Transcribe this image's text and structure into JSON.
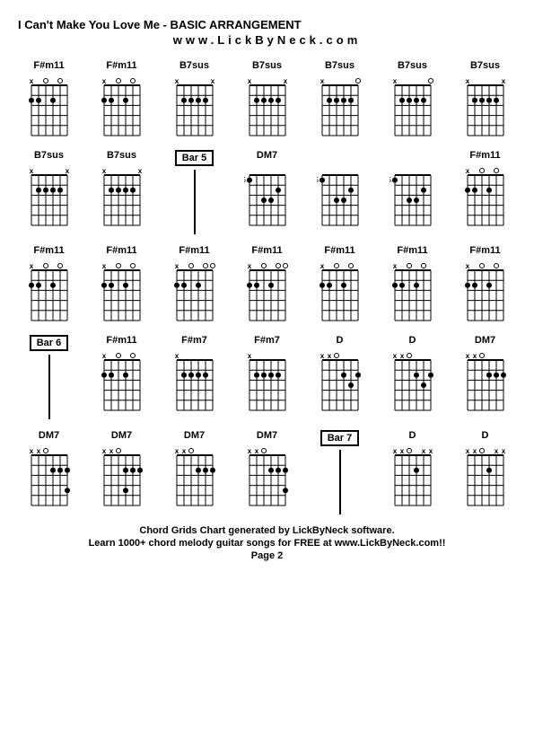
{
  "title": "I Can't Make You Love Me - BASIC ARRANGEMENT",
  "subtitle": "www.LickByNeck.com",
  "footer": {
    "line1": "Chord Grids Chart generated by LickByNeck software.",
    "line2": "Learn 1000+ chord melody guitar songs for FREE at www.LickByNeck.com!!",
    "line3": "Page 2"
  },
  "colors": {
    "grid": "#000000",
    "dot": "#000000",
    "background": "#ffffff"
  },
  "rows": [
    [
      {
        "type": "chord",
        "label": "F#m11",
        "markers": "x.o.o.",
        "dots": [
          [
            2,
            0
          ],
          [
            2,
            1
          ],
          [
            2,
            3
          ]
        ],
        "fret": ""
      },
      {
        "type": "chord",
        "label": "F#m11",
        "markers": "x.o.o.",
        "dots": [
          [
            2,
            0
          ],
          [
            2,
            1
          ],
          [
            2,
            3
          ]
        ],
        "fret": ""
      },
      {
        "type": "chord",
        "label": "B7sus",
        "markers": "x....x",
        "dots": [
          [
            2,
            1
          ],
          [
            2,
            2
          ],
          [
            2,
            3
          ],
          [
            2,
            4
          ]
        ],
        "fret": ""
      },
      {
        "type": "chord",
        "label": "B7sus",
        "markers": "x....x",
        "dots": [
          [
            2,
            1
          ],
          [
            2,
            2
          ],
          [
            2,
            3
          ],
          [
            2,
            4
          ]
        ],
        "fret": ""
      },
      {
        "type": "chord",
        "label": "B7sus",
        "markers": "x....o",
        "dots": [
          [
            2,
            1
          ],
          [
            2,
            2
          ],
          [
            2,
            3
          ],
          [
            2,
            4
          ]
        ],
        "fret": ""
      },
      {
        "type": "chord",
        "label": "B7sus",
        "markers": "x....o",
        "dots": [
          [
            2,
            1
          ],
          [
            2,
            2
          ],
          [
            2,
            3
          ],
          [
            2,
            4
          ]
        ],
        "fret": ""
      },
      {
        "type": "chord",
        "label": "B7sus",
        "markers": "x....x",
        "dots": [
          [
            2,
            1
          ],
          [
            2,
            2
          ],
          [
            2,
            3
          ],
          [
            2,
            4
          ]
        ],
        "fret": ""
      }
    ],
    [
      {
        "type": "chord",
        "label": "B7sus",
        "markers": "x....x",
        "dots": [
          [
            2,
            1
          ],
          [
            2,
            2
          ],
          [
            2,
            3
          ],
          [
            2,
            4
          ]
        ],
        "fret": ""
      },
      {
        "type": "chord",
        "label": "B7sus",
        "markers": "x....x",
        "dots": [
          [
            2,
            1
          ],
          [
            2,
            2
          ],
          [
            2,
            3
          ],
          [
            2,
            4
          ]
        ],
        "fret": ""
      },
      {
        "type": "bar",
        "label": "Bar 5"
      },
      {
        "type": "chord",
        "label": "DM7",
        "markers": "......",
        "dots": [
          [
            1,
            0
          ],
          [
            3,
            2
          ],
          [
            3,
            3
          ],
          [
            2,
            4
          ]
        ],
        "fret": "5"
      },
      {
        "type": "chord",
        "label": "",
        "markers": "......",
        "dots": [
          [
            1,
            0
          ],
          [
            3,
            2
          ],
          [
            3,
            3
          ],
          [
            2,
            4
          ]
        ],
        "fret": "5"
      },
      {
        "type": "chord",
        "label": "",
        "markers": "......",
        "dots": [
          [
            1,
            0
          ],
          [
            3,
            2
          ],
          [
            3,
            3
          ],
          [
            2,
            4
          ]
        ],
        "fret": "5"
      },
      {
        "type": "chord",
        "label": "F#m11",
        "markers": "x.o.o.",
        "dots": [
          [
            2,
            0
          ],
          [
            2,
            1
          ],
          [
            2,
            3
          ]
        ],
        "fret": ""
      }
    ],
    [
      {
        "type": "chord",
        "label": "F#m11",
        "markers": "x.o.o.",
        "dots": [
          [
            2,
            0
          ],
          [
            2,
            1
          ],
          [
            2,
            3
          ]
        ],
        "fret": ""
      },
      {
        "type": "chord",
        "label": "F#m11",
        "markers": "x.o.o.",
        "dots": [
          [
            2,
            0
          ],
          [
            2,
            1
          ],
          [
            2,
            3
          ]
        ],
        "fret": ""
      },
      {
        "type": "chord",
        "label": "F#m11",
        "markers": "x.o.oo",
        "dots": [
          [
            2,
            0
          ],
          [
            2,
            1
          ],
          [
            2,
            3
          ]
        ],
        "fret": ""
      },
      {
        "type": "chord",
        "label": "F#m11",
        "markers": "x.o.oo",
        "dots": [
          [
            2,
            0
          ],
          [
            2,
            1
          ],
          [
            2,
            3
          ]
        ],
        "fret": ""
      },
      {
        "type": "chord",
        "label": "F#m11",
        "markers": "x.o.o.",
        "dots": [
          [
            2,
            0
          ],
          [
            2,
            1
          ],
          [
            2,
            3
          ]
        ],
        "fret": ""
      },
      {
        "type": "chord",
        "label": "F#m11",
        "markers": "x.o.o.",
        "dots": [
          [
            2,
            0
          ],
          [
            2,
            1
          ],
          [
            2,
            3
          ]
        ],
        "fret": ""
      },
      {
        "type": "chord",
        "label": "F#m11",
        "markers": "x.o.o.",
        "dots": [
          [
            2,
            0
          ],
          [
            2,
            1
          ],
          [
            2,
            3
          ]
        ],
        "fret": ""
      }
    ],
    [
      {
        "type": "bar",
        "label": "Bar 6"
      },
      {
        "type": "chord",
        "label": "F#m11",
        "markers": "x.o.o.",
        "dots": [
          [
            2,
            0
          ],
          [
            2,
            1
          ],
          [
            2,
            3
          ]
        ],
        "fret": ""
      },
      {
        "type": "chord",
        "label": "F#m7",
        "markers": "x.....",
        "dots": [
          [
            2,
            1
          ],
          [
            2,
            2
          ],
          [
            2,
            3
          ],
          [
            2,
            4
          ]
        ],
        "fret": ""
      },
      {
        "type": "chord",
        "label": "F#m7",
        "markers": "x.....",
        "dots": [
          [
            2,
            1
          ],
          [
            2,
            2
          ],
          [
            2,
            3
          ],
          [
            2,
            4
          ]
        ],
        "fret": ""
      },
      {
        "type": "chord",
        "label": "D",
        "markers": "xxo...",
        "dots": [
          [
            2,
            3
          ],
          [
            3,
            4
          ],
          [
            2,
            5
          ]
        ],
        "fret": ""
      },
      {
        "type": "chord",
        "label": "D",
        "markers": "xxo...",
        "dots": [
          [
            2,
            3
          ],
          [
            3,
            4
          ],
          [
            2,
            5
          ]
        ],
        "fret": ""
      },
      {
        "type": "chord",
        "label": "DM7",
        "markers": "xxo...",
        "dots": [
          [
            2,
            3
          ],
          [
            2,
            4
          ],
          [
            2,
            5
          ]
        ],
        "fret": ""
      }
    ],
    [
      {
        "type": "chord",
        "label": "DM7",
        "markers": "xxo...",
        "dots": [
          [
            2,
            3
          ],
          [
            2,
            4
          ],
          [
            2,
            5
          ],
          [
            4,
            5
          ]
        ],
        "fret": ""
      },
      {
        "type": "chord",
        "label": "DM7",
        "markers": "xxo...",
        "dots": [
          [
            2,
            3
          ],
          [
            2,
            4
          ],
          [
            2,
            5
          ],
          [
            4,
            3
          ]
        ],
        "fret": ""
      },
      {
        "type": "chord",
        "label": "DM7",
        "markers": "xxo...",
        "dots": [
          [
            2,
            3
          ],
          [
            2,
            4
          ],
          [
            2,
            5
          ]
        ],
        "fret": ""
      },
      {
        "type": "chord",
        "label": "DM7",
        "markers": "xxo...",
        "dots": [
          [
            2,
            3
          ],
          [
            2,
            4
          ],
          [
            2,
            5
          ],
          [
            4,
            5
          ]
        ],
        "fret": ""
      },
      {
        "type": "bar",
        "label": "Bar 7"
      },
      {
        "type": "chord",
        "label": "D",
        "markers": "xxo.xx",
        "dots": [
          [
            2,
            3
          ]
        ],
        "fret": ""
      },
      {
        "type": "chord",
        "label": "D",
        "markers": "xxo.xx",
        "dots": [
          [
            2,
            3
          ]
        ],
        "fret": ""
      }
    ]
  ]
}
